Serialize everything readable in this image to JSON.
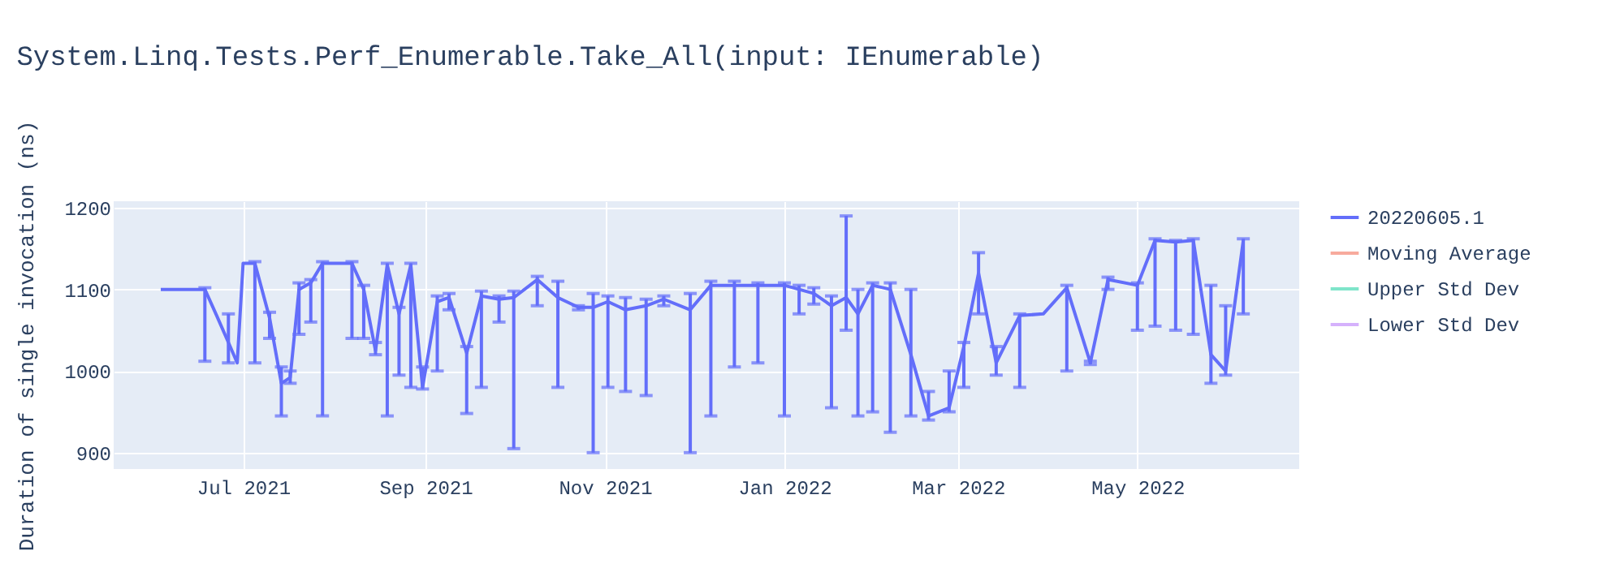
{
  "chart_data": {
    "type": "line",
    "title": "System.Linq.Tests.Perf_Enumerable.Take_All(input: IEnumerable)",
    "ylabel": "Duration of single invocation (ns)",
    "x": [
      "2021-06-03",
      "2021-06-18",
      "2021-06-22",
      "2021-06-26",
      "2021-06-29",
      "2021-07-01",
      "2021-07-05",
      "2021-07-10",
      "2021-07-14",
      "2021-07-17",
      "2021-07-20",
      "2021-07-24",
      "2021-07-28",
      "2021-08-07",
      "2021-08-11",
      "2021-08-15",
      "2021-08-19",
      "2021-08-23",
      "2021-08-27",
      "2021-08-31",
      "2021-09-05",
      "2021-09-09",
      "2021-09-15",
      "2021-09-20",
      "2021-09-26",
      "2021-10-01",
      "2021-10-09",
      "2021-10-16",
      "2021-10-23",
      "2021-10-28",
      "2021-11-02",
      "2021-11-08",
      "2021-11-15",
      "2021-11-21",
      "2021-11-30",
      "2021-12-07",
      "2021-12-15",
      "2021-12-23",
      "2022-01-01",
      "2022-01-06",
      "2022-01-11",
      "2022-01-17",
      "2022-01-22",
      "2022-01-26",
      "2022-01-31",
      "2022-02-06",
      "2022-02-13",
      "2022-02-19",
      "2022-02-26",
      "2022-03-03",
      "2022-03-08",
      "2022-03-14",
      "2022-03-22",
      "2022-03-30",
      "2022-04-07",
      "2022-04-15",
      "2022-04-21",
      "2022-05-01",
      "2022-05-07",
      "2022-05-14",
      "2022-05-20",
      "2022-05-26",
      "2022-05-31",
      "2022-06-06"
    ],
    "series": [
      {
        "name": "20220605.1",
        "color": "#636efa",
        "values": [
          1100,
          1100,
          1068,
          1035,
          1010,
          1132,
          1132,
          1065,
          985,
          992,
          1100,
          1108,
          1132,
          1132,
          1100,
          1025,
          1130,
          1070,
          1130,
          980,
          1085,
          1090,
          1022,
          1092,
          1088,
          1090,
          1112,
          1090,
          1078,
          1078,
          1085,
          1075,
          1080,
          1088,
          1075,
          1105,
          1105,
          1105,
          1105,
          1100,
          1095,
          1080,
          1090,
          1070,
          1105,
          1100,
          1020,
          945,
          955,
          1030,
          1120,
          1010,
          1068,
          1070,
          1102,
          1010,
          1112,
          1105,
          1160,
          1158,
          1160,
          1020,
          1000,
          1160
        ],
        "errors": [
          null,
          [
            1012,
            1102
          ],
          null,
          [
            1010,
            1070
          ],
          null,
          null,
          [
            1010,
            1134
          ],
          [
            1040,
            1072
          ],
          [
            945,
            1005
          ],
          [
            985,
            1000
          ],
          [
            1045,
            1108
          ],
          [
            1060,
            1112
          ],
          [
            945,
            1134
          ],
          [
            1040,
            1134
          ],
          [
            1040,
            1105
          ],
          [
            1020,
            1035
          ],
          [
            945,
            1132
          ],
          [
            995,
            1078
          ],
          [
            980,
            1132
          ],
          [
            978,
            1005
          ],
          [
            1000,
            1092
          ],
          [
            1075,
            1095
          ],
          [
            948,
            1030
          ],
          [
            980,
            1098
          ],
          [
            1060,
            1092
          ],
          [
            905,
            1098
          ],
          [
            1080,
            1116
          ],
          [
            980,
            1110
          ],
          [
            1075,
            1080
          ],
          [
            900,
            1095
          ],
          [
            980,
            1092
          ],
          [
            975,
            1090
          ],
          [
            970,
            1088
          ],
          [
            1080,
            1092
          ],
          [
            900,
            1095
          ],
          [
            945,
            1110
          ],
          [
            1005,
            1110
          ],
          [
            1010,
            1108
          ],
          [
            945,
            1108
          ],
          [
            1070,
            1105
          ],
          [
            1082,
            1102
          ],
          [
            955,
            1092
          ],
          [
            1050,
            1190
          ],
          [
            945,
            1100
          ],
          [
            950,
            1108
          ],
          [
            925,
            1108
          ],
          [
            945,
            1100
          ],
          [
            940,
            975
          ],
          [
            950,
            1000
          ],
          [
            980,
            1035
          ],
          [
            1070,
            1145
          ],
          [
            995,
            1030
          ],
          [
            980,
            1070
          ],
          null,
          [
            1000,
            1105
          ],
          [
            1008,
            1012
          ],
          [
            1100,
            1115
          ],
          [
            1050,
            1108
          ],
          [
            1055,
            1162
          ],
          [
            1050,
            1160
          ],
          [
            1045,
            1162
          ],
          [
            985,
            1105
          ],
          [
            995,
            1080
          ],
          [
            1070,
            1162
          ]
        ]
      },
      {
        "name": "Moving Average",
        "color": "#f7aa9d",
        "values": [
          null,
          null,
          null,
          null,
          null,
          null,
          null,
          null,
          null,
          null,
          null,
          null,
          null,
          null,
          null,
          null,
          null,
          null,
          null,
          null,
          null,
          null,
          null,
          null,
          null,
          null,
          null,
          null,
          null,
          null,
          null,
          null,
          null,
          null,
          null,
          null,
          null,
          null,
          null,
          null,
          null,
          null,
          null,
          null,
          null,
          null,
          null,
          null,
          null,
          null,
          null,
          null,
          null,
          null,
          null,
          null,
          null,
          null,
          null,
          null,
          null,
          null,
          null,
          null
        ]
      },
      {
        "name": "Upper Std Dev",
        "color": "#7fe5ca",
        "values": [
          null,
          null,
          null,
          null,
          null,
          null,
          null,
          null,
          null,
          null,
          null,
          null,
          null,
          null,
          null,
          null,
          null,
          null,
          null,
          null,
          null,
          null,
          null,
          null,
          null,
          null,
          null,
          null,
          null,
          null,
          null,
          null,
          null,
          null,
          null,
          null,
          null,
          null,
          null,
          null,
          null,
          null,
          null,
          null,
          null,
          null,
          null,
          null,
          null,
          null,
          null,
          null,
          null,
          null,
          null,
          null,
          null,
          null,
          null,
          null,
          null,
          null,
          null,
          null
        ]
      },
      {
        "name": "Lower Std Dev",
        "color": "#d5b1fc",
        "values": [
          null,
          null,
          null,
          null,
          null,
          null,
          null,
          null,
          null,
          null,
          null,
          null,
          null,
          null,
          null,
          null,
          null,
          null,
          null,
          null,
          null,
          null,
          null,
          null,
          null,
          null,
          null,
          null,
          null,
          null,
          null,
          null,
          null,
          null,
          null,
          null,
          null,
          null,
          null,
          null,
          null,
          null,
          null,
          null,
          null,
          null,
          null,
          null,
          null,
          null,
          null,
          null,
          null,
          null,
          null,
          null,
          null,
          null,
          null,
          null,
          null,
          null,
          null,
          null
        ]
      }
    ],
    "xlim": [
      "2021-05-18",
      "2022-06-25"
    ],
    "xticks": [
      {
        "value": "2021-07-01",
        "label": "Jul 2021"
      },
      {
        "value": "2021-09-01",
        "label": "Sep 2021"
      },
      {
        "value": "2021-11-01",
        "label": "Nov 2021"
      },
      {
        "value": "2022-01-01",
        "label": "Jan 2022"
      },
      {
        "value": "2022-03-01",
        "label": "Mar 2022"
      },
      {
        "value": "2022-05-01",
        "label": "May 2022"
      }
    ],
    "ylim": [
      880,
      1208
    ],
    "yticks": [
      900,
      1000,
      1100,
      1200
    ],
    "grid": true,
    "legend": "top right",
    "line_style": "solid"
  }
}
